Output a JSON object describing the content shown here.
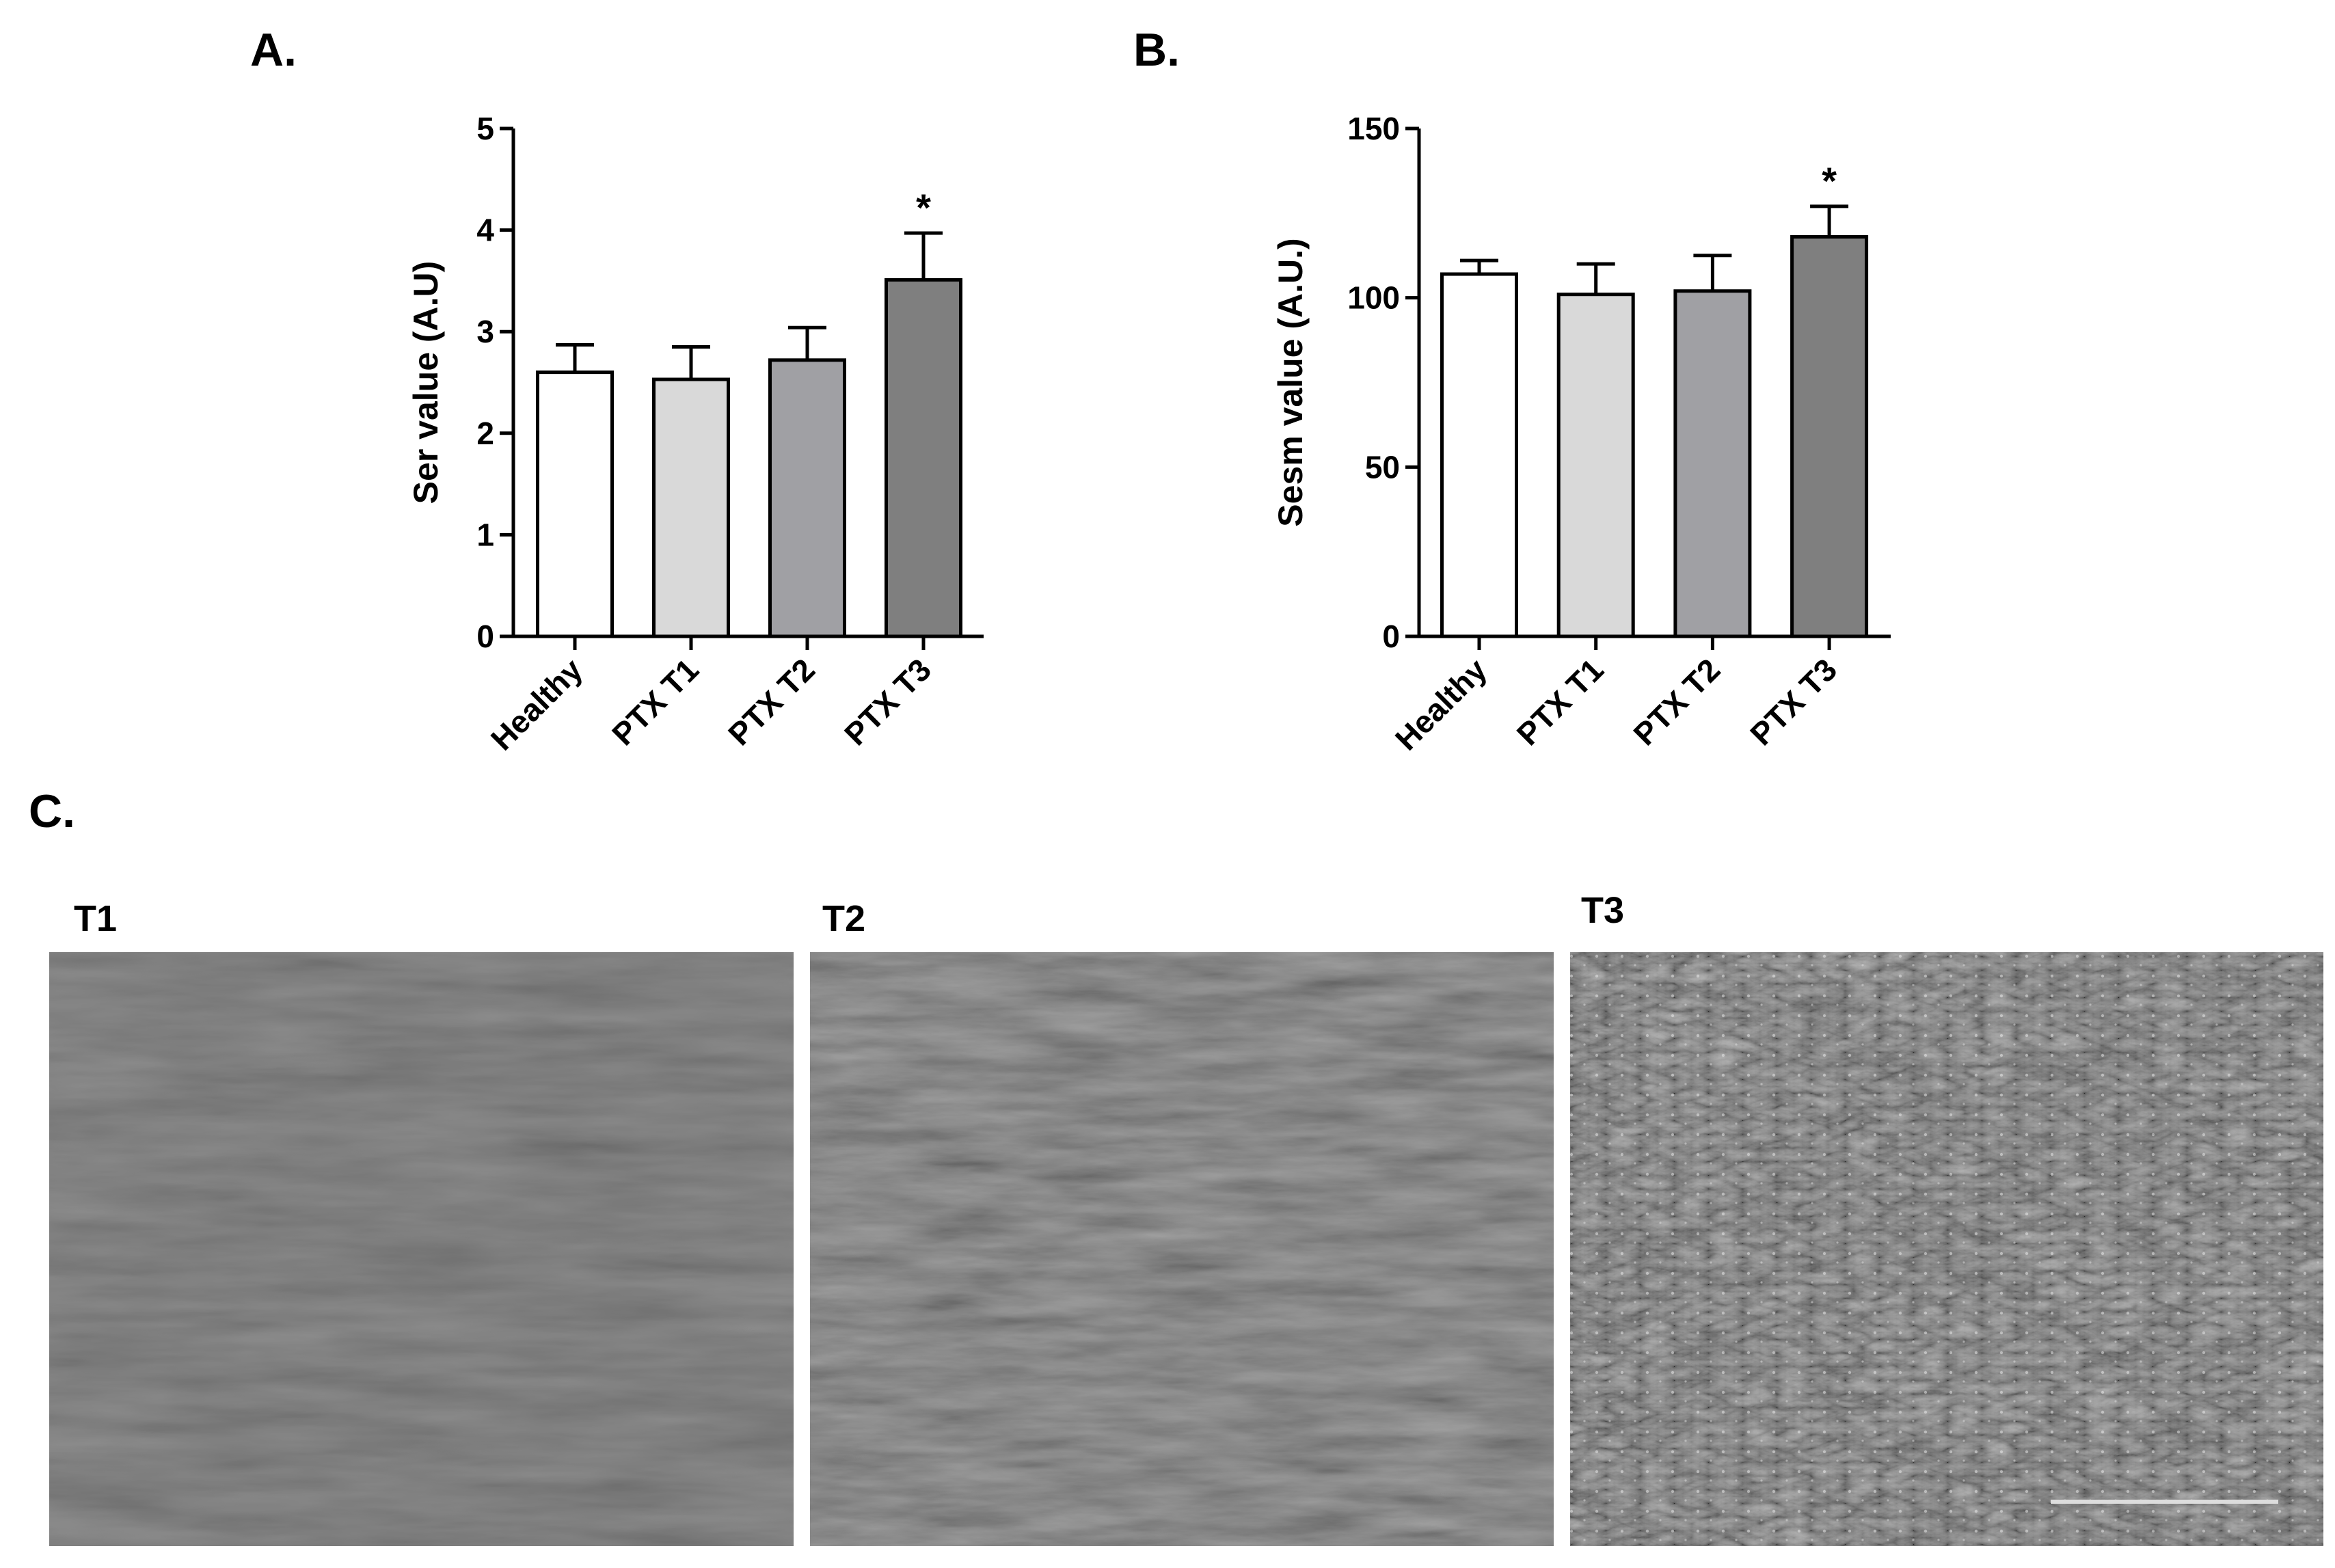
{
  "chart_data": [
    {
      "type": "bar",
      "panel_label": "A.",
      "y_label": "Ser value (A.U)",
      "categories": [
        "Healthy",
        "PTX T1",
        "PTX T2",
        "PTX T3"
      ],
      "values": [
        2.6,
        2.53,
        2.72,
        3.51
      ],
      "errors": [
        0.27,
        0.32,
        0.32,
        0.46
      ],
      "colors": [
        "#ffffff",
        "#d9d9d9",
        "#a0a0a4",
        "#7f7f7f"
      ],
      "significance": [
        null,
        null,
        null,
        "*"
      ],
      "ylim": [
        0,
        5
      ],
      "yticks": [
        0,
        1,
        2,
        3,
        4,
        5
      ]
    },
    {
      "type": "bar",
      "panel_label": "B.",
      "y_label": "Sesm value (A.U.)",
      "categories": [
        "Healthy",
        "PTX T1",
        "PTX T2",
        "PTX T3"
      ],
      "values": [
        107,
        101,
        102,
        118
      ],
      "errors": [
        4,
        9,
        10.5,
        9
      ],
      "colors": [
        "#ffffff",
        "#d9d9d9",
        "#a0a0a4",
        "#7f7f7f"
      ],
      "significance": [
        null,
        null,
        null,
        "*"
      ],
      "ylim": [
        0,
        150
      ],
      "yticks": [
        0,
        50,
        100,
        150
      ]
    }
  ],
  "panel_c": {
    "label": "C.",
    "images": [
      {
        "label": "T1"
      },
      {
        "label": "T2"
      },
      {
        "label": "T3"
      }
    ]
  }
}
